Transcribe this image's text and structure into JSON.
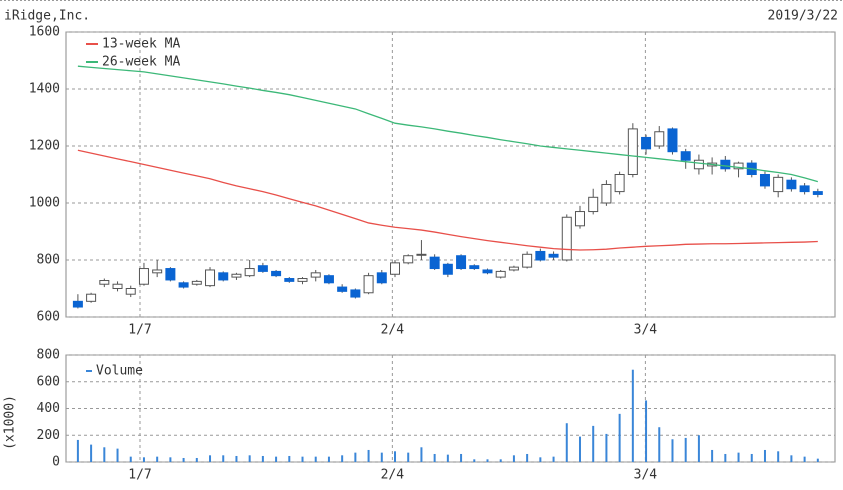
{
  "chart_data": [
    {
      "type": "candlestick",
      "title": "iRidge,Inc.",
      "date": "2019/3/22",
      "categories": [
        null,
        null,
        null,
        null,
        null,
        null,
        null,
        null,
        null,
        null,
        null,
        null,
        null,
        null,
        null,
        null,
        null,
        null,
        null,
        null,
        null,
        null,
        null,
        null,
        null,
        null,
        null,
        null,
        null,
        null,
        null,
        null,
        null,
        null,
        null,
        null,
        null,
        null,
        null,
        null,
        null,
        null,
        null,
        null,
        null,
        null,
        null,
        null,
        null,
        null,
        null,
        null,
        null,
        null,
        null,
        null,
        null
      ],
      "open": [
        655,
        655,
        715,
        700,
        680,
        715,
        755,
        770,
        720,
        715,
        710,
        755,
        740,
        745,
        780,
        760,
        735,
        725,
        740,
        745,
        705,
        695,
        685,
        755,
        750,
        790,
        820,
        810,
        785,
        815,
        780,
        765,
        740,
        765,
        775,
        830,
        820,
        800,
        920,
        970,
        1000,
        1040,
        1100,
        1230,
        1200,
        1260,
        1180,
        1120,
        1130,
        1150,
        1120,
        1140,
        1100,
        1040,
        1080,
        1060,
        1040
      ],
      "high": [
        680,
        685,
        735,
        725,
        710,
        790,
        800,
        775,
        725,
        730,
        775,
        760,
        755,
        800,
        790,
        765,
        740,
        740,
        765,
        750,
        715,
        700,
        755,
        765,
        800,
        820,
        870,
        820,
        790,
        820,
        785,
        770,
        765,
        780,
        830,
        840,
        830,
        960,
        990,
        1050,
        1080,
        1110,
        1280,
        1240,
        1270,
        1265,
        1190,
        1170,
        1160,
        1165,
        1145,
        1150,
        1110,
        1100,
        1090,
        1070,
        1050
      ],
      "low": [
        630,
        650,
        705,
        690,
        670,
        710,
        740,
        725,
        700,
        710,
        705,
        725,
        730,
        740,
        755,
        740,
        720,
        715,
        725,
        715,
        685,
        665,
        680,
        715,
        740,
        785,
        800,
        765,
        740,
        765,
        765,
        750,
        735,
        760,
        770,
        795,
        800,
        795,
        910,
        960,
        990,
        1030,
        1090,
        1170,
        1190,
        1170,
        1120,
        1100,
        1100,
        1110,
        1090,
        1090,
        1050,
        1020,
        1040,
        1030,
        1020
      ],
      "close": [
        635,
        680,
        728,
        715,
        700,
        770,
        765,
        730,
        705,
        725,
        765,
        730,
        750,
        770,
        760,
        745,
        725,
        735,
        755,
        720,
        690,
        670,
        745,
        720,
        790,
        815,
        820,
        770,
        750,
        770,
        770,
        755,
        760,
        775,
        820,
        800,
        810,
        950,
        970,
        1020,
        1065,
        1100,
        1260,
        1190,
        1250,
        1180,
        1150,
        1150,
        1140,
        1120,
        1140,
        1100,
        1060,
        1090,
        1050,
        1040,
        1030
      ],
      "up_color": "#ffffff",
      "down_color": "#0a64d2",
      "series": [
        {
          "name": "13-week MA",
          "color": "#e8504a",
          "values": [
            1185,
            1175,
            1165,
            1155,
            1145,
            1135,
            1125,
            1115,
            1105,
            1095,
            1085,
            1072,
            1060,
            1050,
            1040,
            1028,
            1015,
            1002,
            990,
            975,
            960,
            945,
            930,
            922,
            915,
            910,
            905,
            898,
            890,
            882,
            875,
            868,
            862,
            856,
            850,
            845,
            840,
            837,
            835,
            836,
            838,
            842,
            845,
            848,
            850,
            852,
            855,
            856,
            857,
            857,
            858,
            859,
            860,
            861,
            862,
            863,
            865
          ]
        },
        {
          "name": "26-week MA",
          "color": "#3cb878",
          "values": [
            1480,
            1476,
            1472,
            1468,
            1464,
            1460,
            1453,
            1446,
            1439,
            1432,
            1425,
            1418,
            1410,
            1403,
            1395,
            1388,
            1380,
            1370,
            1360,
            1350,
            1340,
            1330,
            1313,
            1297,
            1280,
            1273,
            1267,
            1260,
            1252,
            1245,
            1237,
            1230,
            1222,
            1215,
            1208,
            1200,
            1195,
            1190,
            1185,
            1180,
            1175,
            1170,
            1165,
            1160,
            1155,
            1150,
            1145,
            1140,
            1135,
            1130,
            1125,
            1120,
            1113,
            1107,
            1100,
            1088,
            1075
          ]
        }
      ],
      "xlim": [
        -0.9,
        57.3
      ],
      "xticks": [
        {
          "value": 4.7,
          "label": "1/7"
        },
        {
          "value": 23.8,
          "label": "2/4"
        },
        {
          "value": 42.95,
          "label": "3/4"
        }
      ],
      "ylim": [
        600,
        1600
      ],
      "yticks": [
        600,
        800,
        1000,
        1200,
        1400,
        1600
      ],
      "grid": true
    },
    {
      "type": "bar",
      "ylabel": "(x1000)",
      "series": [
        {
          "name": "Volume",
          "color": "#3a86d8",
          "values": [
            165,
            130,
            110,
            100,
            40,
            35,
            40,
            35,
            30,
            30,
            50,
            50,
            45,
            50,
            45,
            40,
            45,
            40,
            40,
            40,
            50,
            70,
            90,
            70,
            80,
            70,
            110,
            60,
            55,
            60,
            20,
            20,
            20,
            50,
            60,
            35,
            40,
            290,
            190,
            270,
            210,
            360,
            690,
            460,
            260,
            170,
            180,
            200,
            90,
            60,
            70,
            60,
            90,
            80,
            50,
            40,
            25
          ]
        }
      ],
      "xlim": [
        -0.9,
        57.3
      ],
      "xticks": [
        {
          "value": 4.7,
          "label": "1/7"
        },
        {
          "value": 23.8,
          "label": "2/4"
        },
        {
          "value": 42.95,
          "label": "3/4"
        }
      ],
      "ylim": [
        0,
        800
      ],
      "yticks": [
        0,
        200,
        400,
        600,
        800
      ],
      "grid": true
    }
  ]
}
